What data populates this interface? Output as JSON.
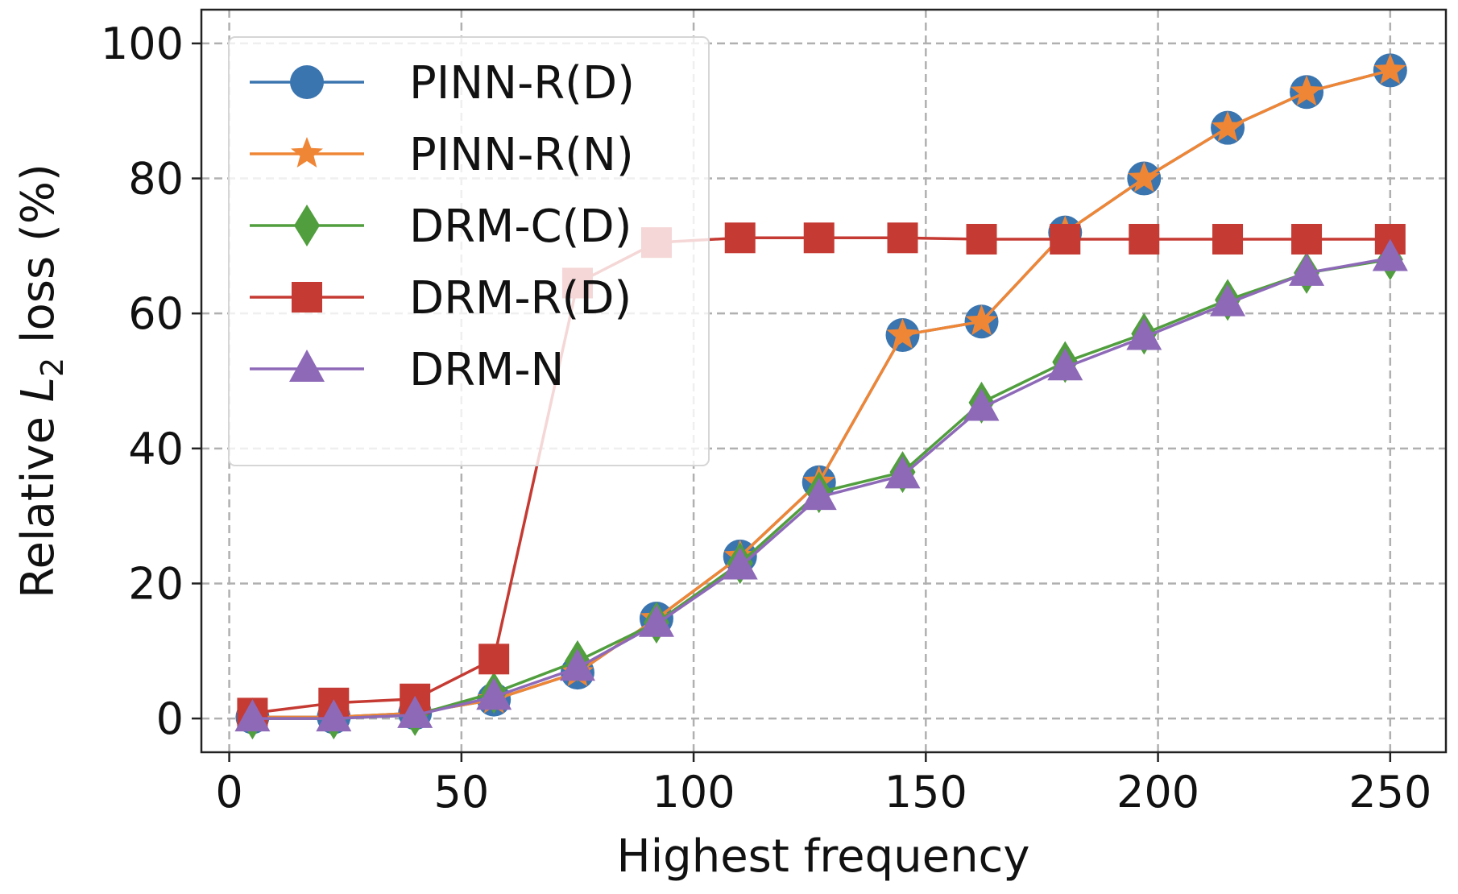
{
  "chart_data": {
    "type": "line",
    "xlabel": "Highest frequency",
    "ylabel_prefix": "Relative ",
    "ylabel_var": "L",
    "ylabel_sub": "2",
    "ylabel_suffix": " loss (%)",
    "xlim": [
      -6,
      262
    ],
    "ylim": [
      -5,
      105
    ],
    "xticks": [
      0,
      50,
      100,
      150,
      200,
      250
    ],
    "yticks": [
      0,
      20,
      40,
      60,
      80,
      100
    ],
    "grid": true,
    "legend_position": "top-left",
    "x": [
      5,
      22.5,
      40,
      57,
      75,
      92,
      110,
      127,
      145,
      162,
      180,
      197,
      215,
      232,
      250
    ],
    "series": [
      {
        "name": "PINN-R(D)",
        "color": "#3b75af",
        "marker": "circle",
        "values": [
          0.2,
          0.2,
          0.8,
          2.8,
          6.8,
          14.8,
          24,
          35,
          56.8,
          58.8,
          72,
          80,
          87.5,
          92.8,
          96
        ]
      },
      {
        "name": "PINN-R(N)",
        "color": "#ef8636",
        "marker": "star",
        "values": [
          0.2,
          0.2,
          0.8,
          2.8,
          6.8,
          14.8,
          24,
          35,
          56.8,
          58.8,
          72,
          80,
          87.5,
          92.8,
          96
        ]
      },
      {
        "name": "DRM-C(D)",
        "color": "#519e3e",
        "marker": "diamond",
        "values": [
          0,
          0,
          0.5,
          3.8,
          8.5,
          14.2,
          23,
          33.5,
          36.5,
          46.8,
          52.8,
          57,
          62,
          66,
          68
        ]
      },
      {
        "name": "DRM-R(D)",
        "color": "#c53a32",
        "marker": "square",
        "values": [
          0.8,
          2.3,
          2.9,
          8.8,
          64.5,
          70.5,
          71.2,
          71.2,
          71.2,
          71,
          71,
          71,
          71,
          71,
          71
        ]
      },
      {
        "name": "DRM-N",
        "color": "#8d69b8",
        "marker": "triangle",
        "values": [
          0,
          0,
          0.5,
          3.2,
          7.5,
          14,
          22.5,
          32.8,
          36,
          46,
          52,
          56.5,
          61.5,
          66,
          68.2
        ]
      }
    ]
  }
}
